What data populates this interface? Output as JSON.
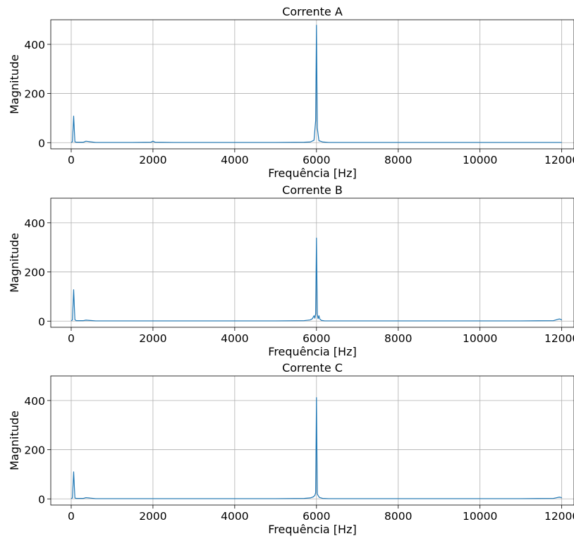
{
  "chart_data": [
    {
      "type": "line",
      "title": "Corrente A",
      "xlabel": "Frequência [Hz]",
      "ylabel": "Magnitude",
      "xlim": [
        -500,
        12300
      ],
      "ylim": [
        -25,
        500
      ],
      "xticks": [
        0,
        2000,
        4000,
        6000,
        8000,
        10000,
        12000
      ],
      "yticks": [
        0,
        200,
        400
      ],
      "grid": true,
      "color": "#1f77b4",
      "series": [
        {
          "x": [
            0,
            30,
            60,
            90,
            120,
            180,
            300,
            360,
            600,
            1000,
            1500,
            1950,
            2000,
            2050,
            2500,
            3000,
            4000,
            5000,
            5700,
            5850,
            5940,
            5980,
            6000,
            6020,
            6060,
            6150,
            6300,
            7000,
            8000,
            9000,
            10000,
            11000,
            11900,
            11950,
            12000
          ],
          "y": [
            1,
            4,
            108,
            4,
            2,
            2,
            2,
            6,
            1,
            1,
            1,
            2,
            6,
            2,
            1,
            1,
            1,
            1,
            2,
            3,
            10,
            90,
            478,
            60,
            8,
            3,
            1,
            1,
            1,
            1,
            1,
            1,
            1,
            1,
            1
          ]
        }
      ]
    },
    {
      "type": "line",
      "title": "Corrente B",
      "xlabel": "Frequência [Hz]",
      "ylabel": "Magnitude",
      "xlim": [
        -500,
        12300
      ],
      "ylim": [
        -25,
        500
      ],
      "xticks": [
        0,
        2000,
        4000,
        6000,
        8000,
        10000,
        12000
      ],
      "yticks": [
        0,
        200,
        400
      ],
      "grid": true,
      "color": "#1f77b4",
      "series": [
        {
          "x": [
            0,
            30,
            60,
            90,
            120,
            180,
            300,
            360,
            600,
            1000,
            2000,
            3000,
            4000,
            5000,
            5700,
            5850,
            5900,
            5940,
            5960,
            5980,
            6000,
            6020,
            6040,
            6060,
            6080,
            6120,
            6200,
            7000,
            8000,
            9000,
            10000,
            11000,
            11800,
            11880,
            11940,
            11980,
            12000
          ],
          "y": [
            1,
            5,
            128,
            6,
            2,
            2,
            2,
            4,
            1,
            1,
            1,
            1,
            1,
            1,
            2,
            5,
            10,
            22,
            12,
            30,
            338,
            28,
            10,
            22,
            9,
            3,
            1,
            1,
            1,
            1,
            1,
            1,
            2,
            6,
            9,
            7,
            4
          ]
        }
      ]
    },
    {
      "type": "line",
      "title": "Corrente C",
      "xlabel": "Frequência [Hz]",
      "ylabel": "Magnitude",
      "xlim": [
        -500,
        12300
      ],
      "ylim": [
        -25,
        500
      ],
      "xticks": [
        0,
        2000,
        4000,
        6000,
        8000,
        10000,
        12000
      ],
      "yticks": [
        0,
        200,
        400
      ],
      "grid": true,
      "color": "#1f77b4",
      "series": [
        {
          "x": [
            0,
            30,
            60,
            90,
            120,
            180,
            300,
            360,
            600,
            1000,
            2000,
            3000,
            4000,
            5000,
            5700,
            5850,
            5920,
            5960,
            5980,
            6000,
            6020,
            6040,
            6070,
            6150,
            6300,
            7000,
            8000,
            9000,
            10000,
            11000,
            11800,
            11880,
            11940,
            11980,
            12000
          ],
          "y": [
            1,
            4,
            110,
            4,
            2,
            2,
            2,
            5,
            1,
            1,
            1,
            1,
            1,
            1,
            2,
            4,
            8,
            14,
            25,
            412,
            20,
            14,
            6,
            2,
            1,
            1,
            1,
            1,
            1,
            1,
            2,
            5,
            7,
            6,
            3
          ]
        }
      ]
    }
  ]
}
